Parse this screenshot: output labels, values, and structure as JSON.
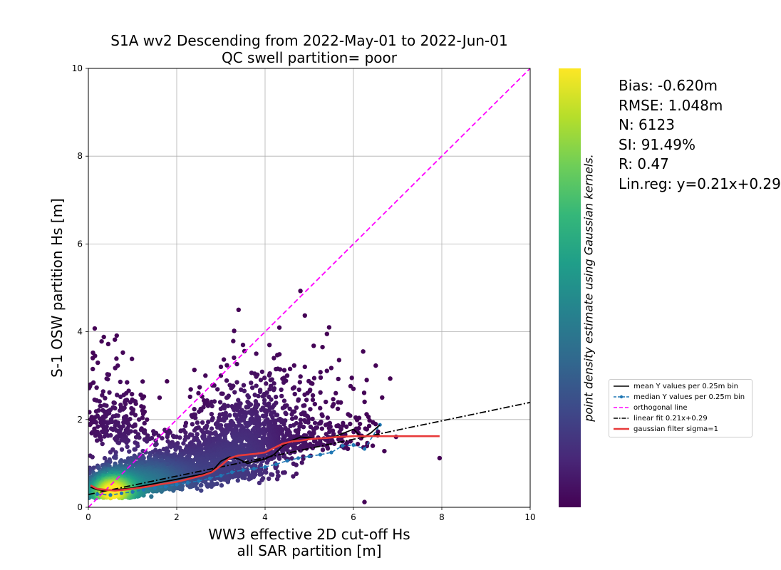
{
  "chart_data": {
    "type": "scatter",
    "title": "S1A wv2 Descending from 2022-May-01 to 2022-Jun-01",
    "subtitle": "QC swell partition= poor",
    "xlabel": [
      "WW3 effective 2D cut-off Hs",
      "all SAR partition [m]"
    ],
    "ylabel": "S-1 OSW partition Hs [m]",
    "colorbar_label": "point density estimate using Gaussian kernels.",
    "colormap": [
      "#440154",
      "#482878",
      "#3e4989",
      "#31688e",
      "#26828e",
      "#1f9e89",
      "#35b779",
      "#6ece58",
      "#b5de2b",
      "#fde725"
    ],
    "xlim": [
      0,
      10
    ],
    "ylim": [
      0,
      10
    ],
    "x_ticks": [
      "0",
      "2",
      "4",
      "6",
      "8",
      "10"
    ],
    "y_ticks": [
      "0",
      "2",
      "4",
      "6",
      "8",
      "10"
    ],
    "grid": true,
    "legend_position": "right",
    "stats": [
      "Bias: -0.620m",
      "RMSE: 1.048m",
      "N: 6123",
      "SI: 91.49%",
      "R: 0.47",
      "Lin.reg: y=0.21x+0.29"
    ],
    "series": [
      {
        "name": "mean Y values per 0.25m bin",
        "color": "#000000",
        "style": "solid",
        "x": [
          0.05,
          0.2,
          0.4,
          0.6,
          0.8,
          1.0,
          1.2,
          1.4,
          1.6,
          1.8,
          2.0,
          2.2,
          2.4,
          2.6,
          2.8,
          3.0,
          3.2,
          3.4,
          3.6,
          3.8,
          4.0,
          4.2,
          4.4,
          4.6,
          4.8,
          5.0,
          5.2,
          5.4,
          5.6,
          5.8,
          6.0,
          6.2,
          6.4,
          6.6
        ],
        "y": [
          0.46,
          0.4,
          0.38,
          0.4,
          0.42,
          0.44,
          0.48,
          0.52,
          0.56,
          0.6,
          0.64,
          0.68,
          0.72,
          0.76,
          0.82,
          1.05,
          1.15,
          1.1,
          1.0,
          1.05,
          1.1,
          1.2,
          1.4,
          1.52,
          1.6,
          1.58,
          1.56,
          1.58,
          1.62,
          1.7,
          1.78,
          1.58,
          1.7,
          1.88
        ]
      },
      {
        "name": "median Y values per 0.25m bin",
        "color": "#1f77b4",
        "style": "dashed-dots",
        "x": [
          0.2,
          0.5,
          0.75,
          1.0,
          1.25,
          1.5,
          1.75,
          2.0,
          2.25,
          2.5,
          2.75,
          3.0,
          3.25,
          3.5,
          3.75,
          4.0,
          4.25,
          4.5,
          4.75,
          5.0,
          5.25,
          5.5,
          5.75,
          6.0,
          6.25,
          6.6
        ],
        "y": [
          0.3,
          0.28,
          0.32,
          0.35,
          0.4,
          0.44,
          0.47,
          0.52,
          0.56,
          0.6,
          0.66,
          0.72,
          0.8,
          0.85,
          0.88,
          0.92,
          0.98,
          1.06,
          1.12,
          1.16,
          1.2,
          1.25,
          1.4,
          1.42,
          1.33,
          1.88
        ]
      },
      {
        "name": "orthogonal line",
        "color": "#ff00ff",
        "style": "dashed",
        "x": [
          0,
          10
        ],
        "y": [
          0,
          10
        ]
      },
      {
        "name": "linear fit 0.21x+0.29",
        "color": "#000000",
        "style": "dash-dot",
        "x": [
          0,
          10
        ],
        "y": [
          0.29,
          2.39
        ]
      },
      {
        "name": "gaussian filter sigma=1",
        "color": "#e83a3a",
        "style": "solid-thick",
        "x": [
          0.05,
          0.2,
          0.4,
          0.6,
          0.8,
          1.0,
          1.2,
          1.4,
          1.6,
          1.8,
          2.0,
          2.2,
          2.4,
          2.6,
          2.8,
          3.0,
          3.2,
          3.4,
          3.6,
          3.8,
          4.0,
          4.2,
          4.4,
          4.6,
          4.8,
          5.0,
          5.2,
          5.4,
          5.6,
          5.8,
          6.0,
          6.2,
          6.4,
          6.6,
          6.8,
          7.0,
          7.2,
          7.4,
          7.6,
          7.8,
          7.95
        ],
        "y": [
          0.5,
          0.42,
          0.4,
          0.38,
          0.4,
          0.42,
          0.45,
          0.48,
          0.52,
          0.55,
          0.58,
          0.63,
          0.68,
          0.73,
          0.8,
          0.95,
          1.12,
          1.18,
          1.2,
          1.22,
          1.25,
          1.35,
          1.45,
          1.5,
          1.52,
          1.55,
          1.57,
          1.58,
          1.6,
          1.61,
          1.62,
          1.62,
          1.62,
          1.62,
          1.62,
          1.62,
          1.62,
          1.62,
          1.62,
          1.62,
          1.62
        ]
      }
    ],
    "scatter_clusters": [
      {
        "cx": 0.5,
        "cy": 0.35,
        "sx": 0.35,
        "sy": 0.22,
        "n": 1400
      },
      {
        "cx": 1.3,
        "cy": 0.5,
        "sx": 0.6,
        "sy": 0.35,
        "n": 1300
      },
      {
        "cx": 2.6,
        "cy": 0.7,
        "sx": 0.75,
        "sy": 0.55,
        "n": 900
      },
      {
        "cx": 3.6,
        "cy": 1.2,
        "sx": 0.6,
        "sy": 0.9,
        "n": 700
      },
      {
        "cx": 0.6,
        "cy": 1.6,
        "sx": 0.45,
        "sy": 0.8,
        "n": 250
      },
      {
        "cx": 4.6,
        "cy": 1.4,
        "sx": 0.7,
        "sy": 0.9,
        "n": 250
      },
      {
        "cx": 5.7,
        "cy": 1.4,
        "sx": 0.5,
        "sy": 0.7,
        "n": 70
      }
    ],
    "scatter_outliers": [
      [
        4.8,
        4.93
      ],
      [
        4.9,
        4.37
      ],
      [
        3.4,
        4.5
      ],
      [
        3.3,
        4.02
      ],
      [
        0.35,
        3.88
      ],
      [
        0.45,
        3.72
      ],
      [
        0.3,
        3.78
      ],
      [
        0.6,
        3.82
      ],
      [
        0.15,
        3.45
      ],
      [
        0.1,
        3.4
      ],
      [
        5.45,
        4.1
      ],
      [
        5.4,
        3.95
      ],
      [
        6.22,
        3.55
      ],
      [
        5.1,
        3.68
      ],
      [
        2.4,
        3.13
      ],
      [
        2.65,
        3.0
      ],
      [
        3.0,
        3.0
      ],
      [
        3.5,
        3.7
      ],
      [
        3.8,
        3.5
      ],
      [
        4.2,
        3.4
      ],
      [
        4.5,
        3.0
      ],
      [
        5.3,
        3.65
      ],
      [
        6.0,
        2.7
      ],
      [
        6.3,
        2.9
      ],
      [
        6.65,
        2.5
      ],
      [
        6.7,
        1.28
      ],
      [
        7.95,
        1.12
      ],
      [
        6.25,
        0.12
      ],
      [
        1.78,
        2.87
      ],
      [
        1.2,
        2.3
      ],
      [
        0.1,
        3.15
      ],
      [
        0.05,
        2.8
      ],
      [
        2.2,
        1.7
      ],
      [
        3.0,
        3.2
      ],
      [
        4.9,
        3.2
      ],
      [
        5.6,
        2.6
      ]
    ]
  }
}
